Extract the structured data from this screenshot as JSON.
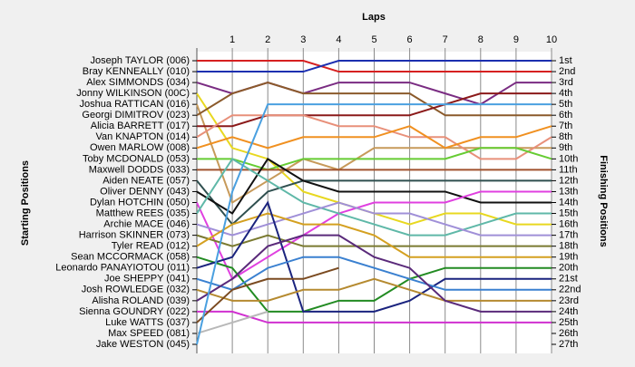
{
  "chart_data": {
    "type": "lap",
    "title": "Laps",
    "y_label": "Starting Positions",
    "y2_label": "Finishing Positions",
    "x": [
      0,
      1,
      2,
      3,
      4,
      5,
      6,
      7,
      8,
      9,
      10
    ],
    "xlim": [
      0,
      10
    ],
    "xticks": [
      1,
      2,
      3,
      4,
      5,
      6,
      7,
      8,
      9,
      10
    ],
    "ylim": [
      1,
      27
    ],
    "y2lim": [
      1,
      27
    ],
    "y2ticks": [
      {
        "value": 1,
        "label": "1st"
      },
      {
        "value": 2,
        "label": "2nd"
      },
      {
        "value": 3,
        "label": "3rd"
      },
      {
        "value": 4,
        "label": "4th"
      },
      {
        "value": 5,
        "label": "5th"
      },
      {
        "value": 6,
        "label": "6th"
      },
      {
        "value": 7,
        "label": "7th"
      },
      {
        "value": 8,
        "label": "8th"
      },
      {
        "value": 9,
        "label": "9th"
      },
      {
        "value": 10,
        "label": "10th"
      },
      {
        "value": 11,
        "label": "11th"
      },
      {
        "value": 12,
        "label": "12th"
      },
      {
        "value": 13,
        "label": "13th"
      },
      {
        "value": 14,
        "label": "14th"
      },
      {
        "value": 15,
        "label": "15th"
      },
      {
        "value": 16,
        "label": "16th"
      },
      {
        "value": 17,
        "label": "17th"
      },
      {
        "value": 18,
        "label": "18th"
      },
      {
        "value": 19,
        "label": "19th"
      },
      {
        "value": 20,
        "label": "20th"
      },
      {
        "value": 21,
        "label": "21st"
      },
      {
        "value": 22,
        "label": "22nd"
      },
      {
        "value": 23,
        "label": "23rd"
      },
      {
        "value": 24,
        "label": "24th"
      },
      {
        "value": 25,
        "label": "25th"
      },
      {
        "value": 26,
        "label": "26th"
      },
      {
        "value": 27,
        "label": "27th"
      }
    ],
    "grid": true,
    "series": [
      {
        "name": "Joseph TAYLOR (006)",
        "color": "#d62020",
        "values": [
          1,
          1,
          1,
          1,
          2,
          2,
          2,
          2,
          2,
          2,
          2
        ]
      },
      {
        "name": "Bray KENNEALLY (010)",
        "color": "#1c2fb0",
        "values": [
          2,
          2,
          2,
          2,
          1,
          1,
          1,
          1,
          1,
          1,
          1
        ]
      },
      {
        "name": "Alex SIMMONDS (034)",
        "color": "#7a2c82",
        "values": [
          3,
          4,
          3,
          4,
          3,
          3,
          3,
          4,
          5,
          3,
          3
        ]
      },
      {
        "name": "Jonny WILKINSON (00C)",
        "color": "#e8d820",
        "values": [
          4,
          9,
          10,
          13,
          14,
          15,
          16,
          15,
          15,
          16,
          16
        ]
      },
      {
        "name": "Joshua RATTICAN (016)",
        "color": "#c79a5a",
        "values": [
          5,
          14,
          12,
          10,
          11,
          9,
          9,
          9,
          9,
          9,
          9
        ]
      },
      {
        "name": "Georgi DIMITROV (023)",
        "color": "#8b5a2b",
        "values": [
          6,
          4,
          3,
          4,
          4,
          4,
          4,
          6,
          6,
          6,
          6
        ]
      },
      {
        "name": "Alicia BARRETT (017)",
        "color": "#8b1a1a",
        "values": [
          7,
          7,
          6,
          6,
          6,
          6,
          6,
          5,
          4,
          4,
          4
        ]
      },
      {
        "name": "Van KNAPTON (014)",
        "color": "#e8907a",
        "values": [
          8,
          6,
          6,
          6,
          7,
          7,
          8,
          8,
          10,
          10,
          8
        ]
      },
      {
        "name": "Owen MARLOW (008)",
        "color": "#f09020",
        "values": [
          9,
          8,
          9,
          8,
          8,
          8,
          7,
          9,
          8,
          8,
          7
        ]
      },
      {
        "name": "Toby MCDONALD (053)",
        "color": "#66cc33",
        "values": [
          10,
          10,
          11,
          10,
          10,
          10,
          10,
          10,
          9,
          9,
          10
        ]
      },
      {
        "name": "Maxwell DODDS (033)",
        "color": "#a0522d",
        "values": [
          11,
          11,
          11,
          11,
          11,
          11,
          11,
          11,
          11,
          11,
          11
        ]
      },
      {
        "name": "Aiden NEATE (057)",
        "color": "#2f4f4f",
        "values": [
          12,
          16,
          13,
          12,
          12,
          12,
          12,
          12,
          12,
          12,
          12
        ]
      },
      {
        "name": "Oliver DENNY (043)",
        "color": "#111111",
        "values": [
          13,
          15,
          10,
          12,
          13,
          13,
          13,
          13,
          14,
          14,
          14
        ]
      },
      {
        "name": "Dylan HOTCHIN (050)",
        "color": "#e040e0",
        "values": [
          14,
          21,
          19,
          17,
          15,
          14,
          14,
          14,
          13,
          13,
          13
        ]
      },
      {
        "name": "Matthew REES (035)",
        "color": "#5fb8a8",
        "values": [
          15,
          10,
          12,
          14,
          15,
          16,
          17,
          17,
          16,
          15,
          15
        ]
      },
      {
        "name": "Archie MACE (046)",
        "color": "#a090d8",
        "values": [
          16,
          17,
          16,
          15,
          14,
          15,
          15,
          16,
          17,
          17,
          17
        ]
      },
      {
        "name": "Harrison SKINNER (073)",
        "color": "#7a7a30",
        "values": [
          17,
          18,
          17,
          18,
          18,
          18,
          18,
          18,
          18,
          18,
          18
        ]
      },
      {
        "name": "Tyler READ (012)",
        "color": "#d4a020",
        "values": [
          18,
          16,
          15,
          16,
          16,
          17,
          19,
          19,
          19,
          19,
          19
        ]
      },
      {
        "name": "Sean MCCORMACK (058)",
        "color": "#228b22",
        "values": [
          19,
          20,
          24,
          24,
          23,
          23,
          21,
          20,
          20,
          20,
          20
        ]
      },
      {
        "name": "Leonardo PANAYIOTOU (011)",
        "color": "#1a237e",
        "values": [
          20,
          19,
          14,
          24,
          24,
          24,
          23,
          21,
          21,
          21,
          21
        ]
      },
      {
        "name": "Joe SHEPPY (041)",
        "color": "#3a80d0",
        "values": [
          21,
          22,
          20,
          19,
          19,
          20,
          21,
          22,
          22,
          22,
          22
        ]
      },
      {
        "name": "Josh ROWLEDGE (032)",
        "color": "#b58a30",
        "values": [
          22,
          23,
          23,
          22,
          22,
          21,
          22,
          23,
          23,
          23,
          23
        ]
      },
      {
        "name": "Alisha ROLAND (039)",
        "color": "#5a2a7a",
        "values": [
          23,
          21,
          18,
          17,
          17,
          19,
          20,
          23,
          24,
          24,
          24
        ]
      },
      {
        "name": "Sienna GOUNDRY (022)",
        "color": "#d030d0",
        "values": [
          24,
          24,
          25,
          25,
          25,
          25,
          25,
          25,
          25,
          25,
          25
        ]
      },
      {
        "name": "Luke WATTS (037)",
        "color": "#7a4a20",
        "values": [
          25,
          22,
          21,
          21,
          20,
          null,
          null,
          null,
          null,
          null,
          null
        ]
      },
      {
        "name": "Max SPEED (081)",
        "color": "#b8b8b8",
        "values": [
          26,
          25,
          24,
          null,
          null,
          null,
          null,
          null,
          null,
          null,
          null
        ]
      },
      {
        "name": "Jake WESTON (045)",
        "color": "#4aa0e0",
        "values": [
          27,
          13,
          5,
          5,
          5,
          5,
          5,
          5,
          5,
          5,
          5
        ]
      }
    ]
  }
}
